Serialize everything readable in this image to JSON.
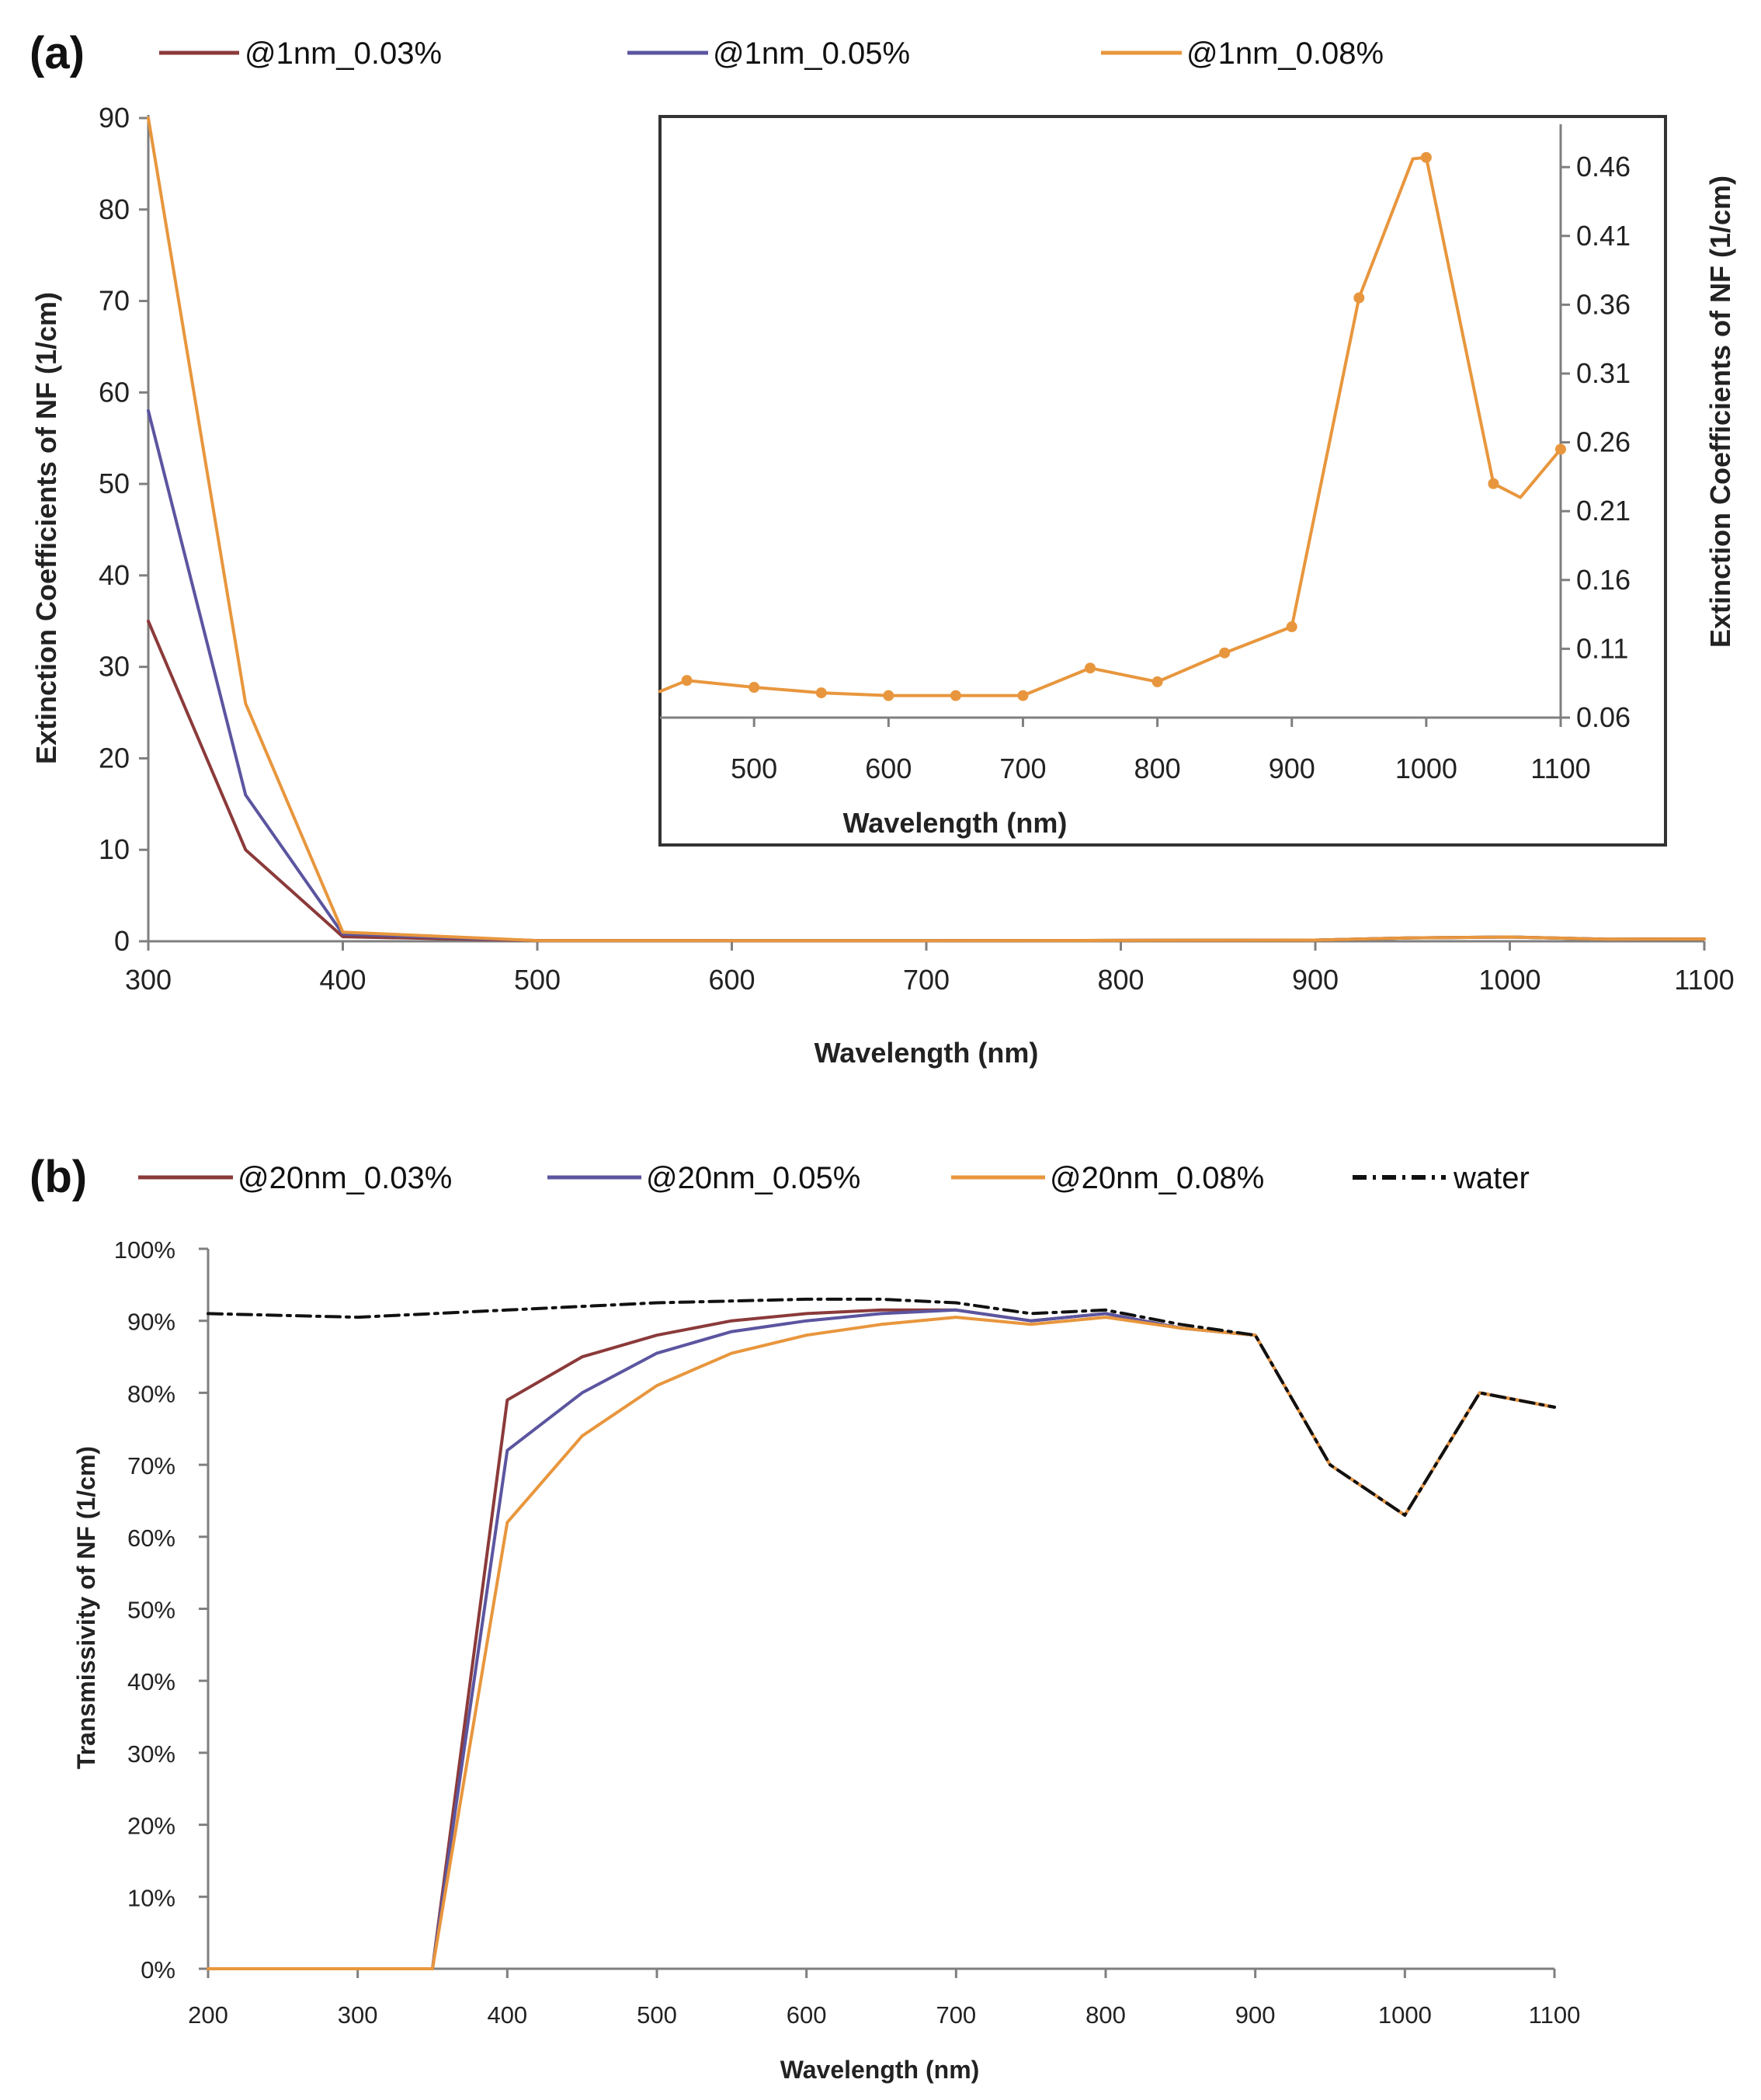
{
  "chart_data": [
    {
      "panel": "(a)",
      "type": "line",
      "title": "",
      "xlabel": "Wavelength (nm)",
      "ylabel": "Extinction Coefficients of NF (1/cm)",
      "xlim": [
        300,
        1100
      ],
      "ylim": [
        0,
        90
      ],
      "x_ticks": [
        "300",
        "400",
        "500",
        "600",
        "700",
        "800",
        "900",
        "1000",
        "1100"
      ],
      "y_ticks": [
        "0",
        "10",
        "20",
        "30",
        "40",
        "50",
        "60",
        "70",
        "80",
        "90"
      ],
      "legend_position": "top",
      "series": [
        {
          "name": "@1nm_0.03%",
          "color": "#8b3a3a",
          "x": [
            300,
            350,
            400,
            500,
            600,
            700,
            800,
            900,
            950,
            1000,
            1050,
            1100
          ],
          "y": [
            35,
            10,
            0.5,
            0.08,
            0.07,
            0.07,
            0.09,
            0.13,
            0.37,
            0.47,
            0.22,
            0.25
          ]
        },
        {
          "name": "@1nm_0.05%",
          "color": "#5b55a0",
          "x": [
            300,
            350,
            400,
            500,
            600,
            700,
            800,
            900,
            950,
            1000,
            1050,
            1100
          ],
          "y": [
            58,
            16,
            0.8,
            0.08,
            0.07,
            0.07,
            0.09,
            0.13,
            0.37,
            0.47,
            0.22,
            0.25
          ]
        },
        {
          "name": "@1nm_0.08%",
          "color": "#e8963d",
          "x": [
            300,
            350,
            400,
            500,
            600,
            700,
            800,
            900,
            950,
            1000,
            1050,
            1100
          ],
          "y": [
            90,
            26,
            1.0,
            0.08,
            0.07,
            0.07,
            0.09,
            0.13,
            0.37,
            0.47,
            0.22,
            0.25
          ]
        }
      ],
      "inset": {
        "type": "line",
        "xlabel": "Wavelength (nm)",
        "ylabel": "Extinction Coefficients of NF (1/cm)",
        "xlim": [
          430,
          1100
        ],
        "ylim": [
          0.06,
          0.49
        ],
        "x_ticks": [
          "500",
          "600",
          "700",
          "800",
          "900",
          "1000",
          "1100"
        ],
        "y_ticks": [
          "0.06",
          "0.11",
          "0.16",
          "0.21",
          "0.26",
          "0.31",
          "0.36",
          "0.41",
          "0.46"
        ],
        "y_axis_side": "right",
        "series": [
          {
            "name": "@1nm_0.08%",
            "color": "#e8963d",
            "x": [
              430,
              450,
              500,
              550,
              600,
              650,
              700,
              750,
              800,
              850,
              900,
              950,
              990,
              1000,
              1050,
              1070,
              1100
            ],
            "y": [
              0.079,
              0.087,
              0.082,
              0.078,
              0.076,
              0.076,
              0.076,
              0.096,
              0.086,
              0.107,
              0.126,
              0.365,
              0.466,
              0.467,
              0.23,
              0.22,
              0.255
            ]
          }
        ]
      }
    },
    {
      "panel": "(b)",
      "type": "line",
      "title": "",
      "xlabel": "Wavelength (nm)",
      "ylabel": "Transmissivity of NF (1/cm)",
      "xlim": [
        200,
        1100
      ],
      "ylim": [
        0,
        100
      ],
      "x_ticks": [
        "200",
        "300",
        "400",
        "500",
        "600",
        "700",
        "800",
        "900",
        "1000",
        "1100"
      ],
      "y_ticks": [
        "0%",
        "10%",
        "20%",
        "30%",
        "40%",
        "50%",
        "60%",
        "70%",
        "80%",
        "90%",
        "100%"
      ],
      "legend_position": "top",
      "series": [
        {
          "name": "@20nm_0.03%",
          "color": "#8b3a3a",
          "dash": "",
          "x": [
            200,
            350,
            400,
            450,
            500,
            550,
            600,
            650,
            700,
            750,
            800,
            850,
            900,
            950,
            1000,
            1050,
            1100
          ],
          "y": [
            0,
            0,
            79,
            85,
            88,
            90,
            91,
            91.5,
            91.5,
            90,
            91,
            89,
            88,
            70,
            63,
            80,
            78
          ]
        },
        {
          "name": "@20nm_0.05%",
          "color": "#5b55a0",
          "dash": "",
          "x": [
            200,
            350,
            400,
            450,
            500,
            550,
            600,
            650,
            700,
            750,
            800,
            850,
            900,
            950,
            1000,
            1050,
            1100
          ],
          "y": [
            0,
            0,
            72,
            80,
            85.5,
            88.5,
            90,
            91,
            91.5,
            90,
            91,
            89,
            88,
            70,
            63,
            80,
            78
          ]
        },
        {
          "name": "@20nm_0.08%",
          "color": "#e8963d",
          "dash": "",
          "x": [
            200,
            350,
            400,
            450,
            500,
            550,
            600,
            650,
            700,
            750,
            800,
            850,
            900,
            950,
            1000,
            1050,
            1100
          ],
          "y": [
            0,
            0,
            62,
            74,
            81,
            85.5,
            88,
            89.5,
            90.5,
            89.5,
            90.5,
            89,
            88,
            70,
            63,
            80,
            78
          ]
        },
        {
          "name": "water",
          "color": "#111111",
          "dash": "18,8,4,8",
          "x": [
            200,
            300,
            400,
            500,
            600,
            650,
            700,
            750,
            800,
            850,
            900,
            950,
            1000,
            1050,
            1100
          ],
          "y": [
            91,
            90.5,
            91.5,
            92.5,
            93,
            93,
            92.5,
            91,
            91.5,
            89.5,
            88,
            70,
            63,
            80,
            78
          ]
        }
      ]
    }
  ]
}
